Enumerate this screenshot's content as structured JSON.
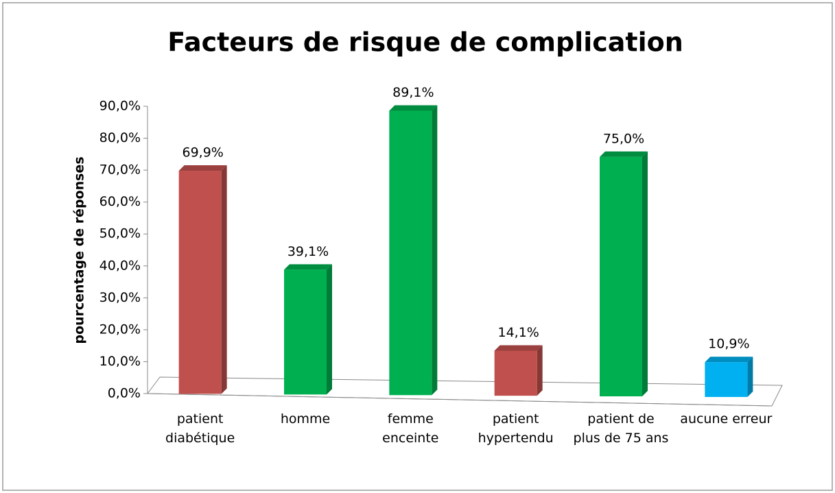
{
  "chart_data": {
    "type": "bar",
    "title": "Facteurs de risque de complication",
    "y_label": "pourcentage de réponses",
    "categories": [
      "patient diabétique",
      "homme",
      "femme enceinte",
      "patient hypertendu",
      "patient de plus de 75 ans",
      "aucune erreur"
    ],
    "values": [
      69.9,
      39.1,
      89.1,
      14.1,
      75.0,
      10.9
    ],
    "value_labels": [
      "69,9%",
      "39,1%",
      "89,1%",
      "14,1%",
      "75,0%",
      "10,9%"
    ],
    "colors": [
      "#c0504d",
      "#00b050",
      "#00b050",
      "#c0504d",
      "#00b050",
      "#00b0f0"
    ],
    "ylim": [
      0,
      90
    ],
    "yticks": [
      {
        "value": 0,
        "label": "0,0%"
      },
      {
        "value": 10,
        "label": "10,0%"
      },
      {
        "value": 20,
        "label": "20,0%"
      },
      {
        "value": 30,
        "label": "30,0%"
      },
      {
        "value": 40,
        "label": "40,0%"
      },
      {
        "value": 50,
        "label": "50,0%"
      },
      {
        "value": 60,
        "label": "60,0%"
      },
      {
        "value": 70,
        "label": "70,0%"
      },
      {
        "value": 80,
        "label": "80,0%"
      },
      {
        "value": 90,
        "label": "90,0%"
      }
    ]
  }
}
